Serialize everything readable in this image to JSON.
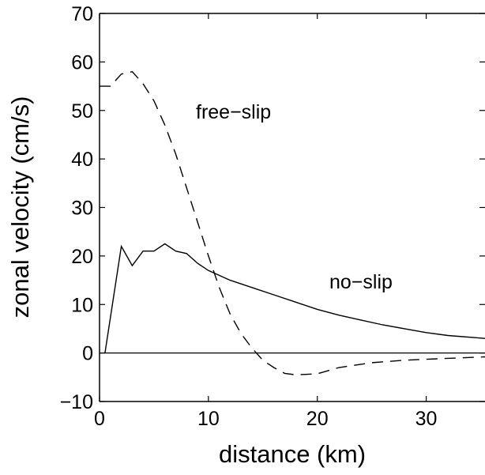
{
  "chart_data": {
    "type": "line",
    "xlabel": "distance (km)",
    "ylabel": "zonal velocity (cm/s)",
    "xlim": [
      0,
      35.4
    ],
    "ylim": [
      -10,
      70
    ],
    "xticks": [
      0,
      10,
      20,
      30
    ],
    "yticks": [
      {
        "value": -10,
        "label": "−10"
      },
      0,
      10,
      20,
      30,
      40,
      50,
      60,
      70
    ],
    "zero_line": true,
    "series": [
      {
        "name": "no−slip",
        "color": "#000000",
        "dash": "solid",
        "x": [
          0.5,
          2,
          3,
          4,
          5,
          6,
          7,
          8,
          9,
          10,
          12,
          14,
          16,
          18,
          20,
          22,
          24,
          26,
          28,
          30,
          32,
          35.4
        ],
        "values": [
          0,
          22,
          18,
          21,
          21,
          22.5,
          21,
          20.5,
          18.5,
          17,
          15,
          13.5,
          12,
          10.5,
          9,
          7.8,
          6.8,
          5.8,
          5,
          4.2,
          3.6,
          3
        ]
      },
      {
        "name": "free−slip",
        "color": "#000000",
        "dash": "dashed",
        "x": [
          0,
          1,
          2,
          3,
          4,
          5,
          6,
          7,
          8,
          9,
          10,
          11,
          12,
          13,
          14,
          15,
          16,
          17,
          18,
          20,
          22,
          25,
          28,
          31,
          35.4
        ],
        "values": [
          55,
          55,
          57.5,
          58,
          55.5,
          52,
          47,
          41,
          34,
          27,
          20,
          13.5,
          8,
          4,
          1,
          -1.5,
          -3,
          -4.2,
          -4.5,
          -4.3,
          -3,
          -2,
          -1.5,
          -1.2,
          -0.8
        ]
      }
    ]
  }
}
